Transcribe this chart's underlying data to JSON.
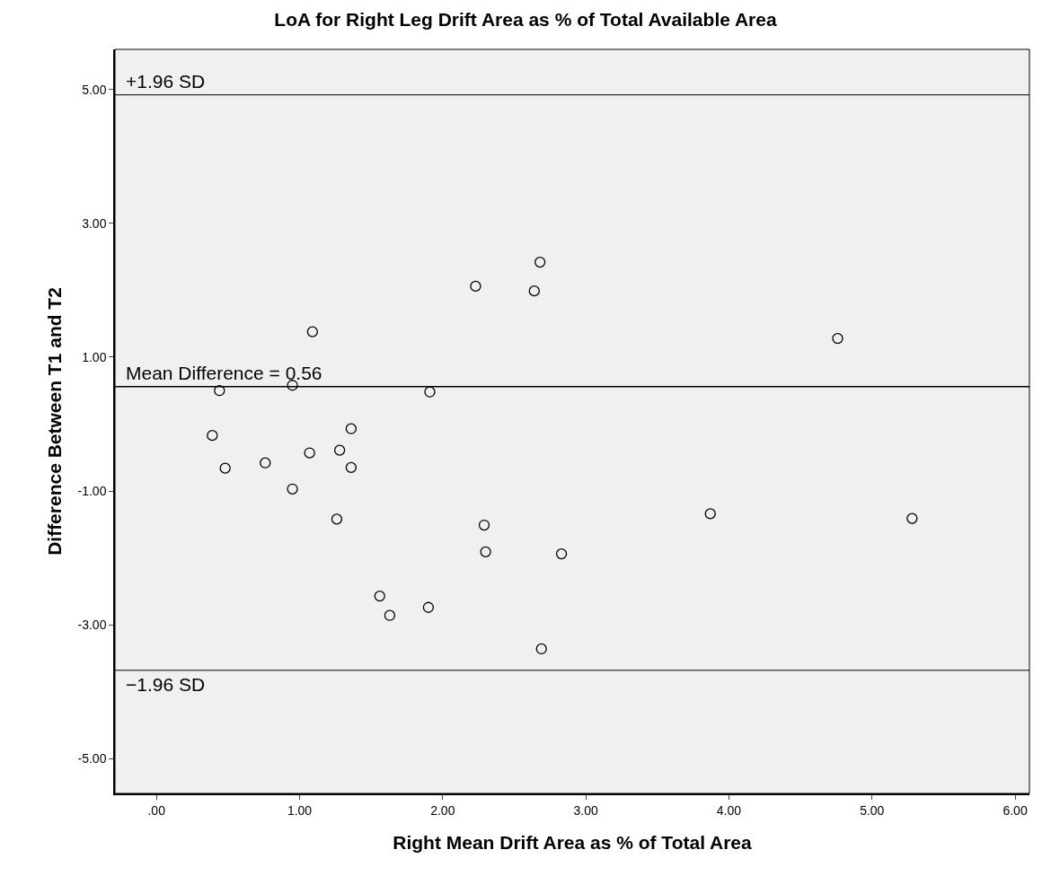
{
  "chart_data": {
    "type": "scatter",
    "title": "LoA for Right Leg Drift Area as % of Total Available Area",
    "xlabel": "Right Mean Drift Area as % of Total Area",
    "ylabel": "Difference Between T1 and T2",
    "x": [
      2.68,
      2.23,
      2.64,
      4.76,
      1.09,
      0.44,
      0.95,
      1.91,
      0.39,
      1.36,
      0.48,
      0.76,
      1.07,
      1.28,
      1.36,
      0.95,
      1.26,
      2.29,
      2.3,
      2.83,
      3.87,
      5.28,
      1.56,
      1.63,
      1.9,
      2.69
    ],
    "values": [
      2.42,
      2.06,
      1.99,
      1.28,
      1.38,
      0.5,
      0.58,
      0.48,
      -0.17,
      -0.07,
      -0.66,
      -0.58,
      -0.43,
      -0.39,
      -0.65,
      -0.97,
      -1.42,
      -1.51,
      -1.91,
      -1.94,
      -1.34,
      -1.41,
      -2.57,
      -2.86,
      -2.74,
      -3.36
    ],
    "color": "#000000",
    "marker": "circle",
    "grid": false,
    "xlim": [
      -0.29,
      6.1
    ],
    "ylim": [
      -5.52,
      5.6
    ],
    "xticks": [
      {
        "value": 0,
        "label": ".00"
      },
      {
        "value": 1,
        "label": "1.00"
      },
      {
        "value": 2,
        "label": "2.00"
      },
      {
        "value": 3,
        "label": "3.00"
      },
      {
        "value": 4,
        "label": "4.00"
      },
      {
        "value": 5,
        "label": "5.00"
      },
      {
        "value": 6,
        "label": "6.00"
      }
    ],
    "yticks": [
      {
        "value": -5,
        "label": "-5.00"
      },
      {
        "value": -3,
        "label": "-3.00"
      },
      {
        "value": -1,
        "label": "-1.00"
      },
      {
        "value": 1,
        "label": "1.00"
      },
      {
        "value": 3,
        "label": "3.00"
      },
      {
        "value": 5,
        "label": "5.00"
      }
    ],
    "ref_lines": [
      {
        "axis": "y",
        "value": 4.92,
        "label": "+1.96 SD",
        "color": "#000000"
      },
      {
        "axis": "y",
        "value": 0.56,
        "label": "Mean Difference = 0.56",
        "color": "#000000"
      },
      {
        "axis": "y",
        "value": -3.68,
        "label": "−1.96 SD",
        "color": "#000000"
      }
    ]
  }
}
